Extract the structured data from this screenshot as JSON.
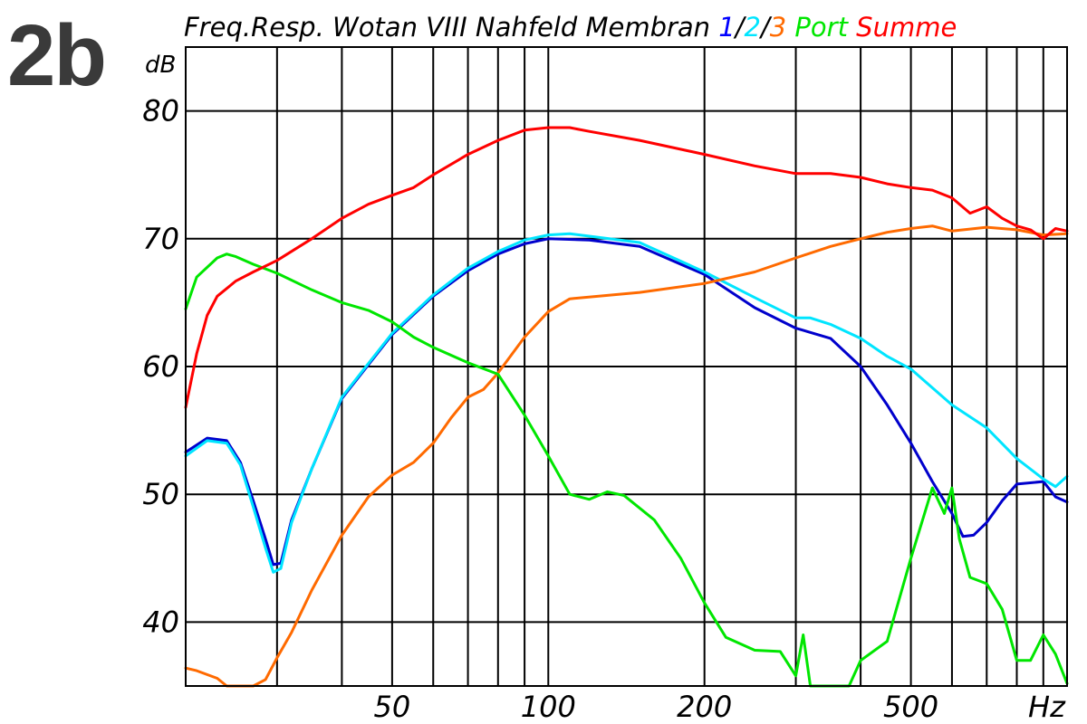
{
  "figure_label": "2b",
  "chart_data": {
    "type": "line",
    "title": "Freq.Resp. Wotan VIII Nahfeld Membran",
    "title_parts": [
      {
        "text": "Freq.Resp. Wotan VIII Nahfeld Membran ",
        "color": "#000000"
      },
      {
        "text": "1",
        "color": "#0000ff"
      },
      {
        "text": "/",
        "color": "#000000"
      },
      {
        "text": "2",
        "color": "#00e5ff"
      },
      {
        "text": "/",
        "color": "#000000"
      },
      {
        "text": "3",
        "color": "#ff6a00"
      },
      {
        "text": " Port",
        "color": "#00e600"
      },
      {
        "text": " Summe",
        "color": "#ff0000"
      }
    ],
    "xlabel": "Hz",
    "ylabel": "dB",
    "x_scale": "log",
    "xlim": [
      20,
      1000
    ],
    "ylim": [
      35,
      85
    ],
    "grid": true,
    "legend": "in title",
    "x_ticks": [
      {
        "value": 50,
        "label": "50"
      },
      {
        "value": 100,
        "label": "100"
      },
      {
        "value": 200,
        "label": "200"
      },
      {
        "value": 500,
        "label": "500"
      }
    ],
    "x_minor": [
      30,
      40,
      60,
      70,
      80,
      90,
      300,
      400,
      600,
      700,
      800,
      900
    ],
    "y_ticks": [
      {
        "value": 40,
        "label": "40"
      },
      {
        "value": 50,
        "label": "50"
      },
      {
        "value": 60,
        "label": "60"
      },
      {
        "value": 70,
        "label": "70"
      },
      {
        "value": 80,
        "label": "80"
      }
    ],
    "series": [
      {
        "name": "1",
        "color": "#0000cc",
        "x": [
          20,
          22,
          24,
          25.5,
          27,
          28.5,
          29.5,
          30.5,
          32,
          35,
          40,
          50,
          60,
          70,
          80,
          90,
          100,
          120,
          150,
          200,
          250,
          300,
          350,
          400,
          450,
          500,
          550,
          600,
          630,
          660,
          700,
          750,
          800,
          900,
          950,
          1000
        ],
        "y": [
          53.3,
          54.4,
          54.2,
          52.5,
          49.5,
          46.5,
          44.5,
          44.6,
          48.0,
          52.0,
          57.5,
          62.5,
          65.5,
          67.5,
          68.8,
          69.6,
          70.0,
          69.9,
          69.4,
          67.2,
          64.6,
          63.0,
          62.2,
          60.0,
          57.0,
          54.0,
          51.0,
          48.5,
          46.7,
          46.8,
          47.8,
          49.5,
          50.8,
          51.0,
          49.8,
          49.4
        ]
      },
      {
        "name": "2",
        "color": "#00e5ff",
        "x": [
          20,
          22,
          24,
          25.5,
          27,
          28.5,
          29.5,
          30.5,
          32,
          35,
          40,
          50,
          60,
          70,
          80,
          90,
          100,
          110,
          150,
          200,
          250,
          300,
          320,
          350,
          400,
          450,
          500,
          600,
          700,
          800,
          900,
          950,
          1000
        ],
        "y": [
          53.0,
          54.2,
          54.0,
          52.3,
          49.0,
          45.8,
          43.9,
          44.2,
          47.8,
          52.0,
          57.6,
          62.6,
          65.6,
          67.7,
          69.0,
          69.9,
          70.3,
          70.4,
          69.7,
          67.4,
          65.4,
          63.8,
          63.8,
          63.3,
          62.2,
          60.8,
          59.8,
          57.0,
          55.2,
          52.8,
          51.2,
          50.6,
          51.4
        ]
      },
      {
        "name": "3",
        "color": "#ff6a00",
        "x": [
          20,
          21,
          23,
          24,
          27,
          28.5,
          30,
          32,
          35,
          40,
          45,
          50,
          55,
          60,
          65,
          70,
          75,
          80,
          90,
          100,
          110,
          150,
          200,
          250,
          300,
          350,
          400,
          450,
          500,
          550,
          600,
          700,
          800,
          900,
          1000
        ],
        "y": [
          36.4,
          36.2,
          35.6,
          35.0,
          35.0,
          35.5,
          37.2,
          39.2,
          42.5,
          46.8,
          49.8,
          51.5,
          52.5,
          54.0,
          56.0,
          57.6,
          58.2,
          59.5,
          62.3,
          64.3,
          65.3,
          65.8,
          66.5,
          67.4,
          68.5,
          69.4,
          70.0,
          70.5,
          70.8,
          71.0,
          70.6,
          70.9,
          70.7,
          70.3,
          70.4
        ]
      },
      {
        "name": "Port",
        "color": "#00e600",
        "x": [
          20,
          21,
          23,
          24,
          25,
          27,
          30,
          35,
          40,
          45,
          50,
          55,
          60,
          70,
          80,
          90,
          100,
          110,
          120,
          130,
          140,
          160,
          180,
          200,
          220,
          250,
          280,
          300,
          310,
          320,
          330,
          350,
          380,
          400,
          450,
          500,
          550,
          580,
          600,
          620,
          650,
          700,
          750,
          800,
          850,
          900,
          950,
          1000
        ],
        "y": [
          64.5,
          67.0,
          68.5,
          68.8,
          68.6,
          68.0,
          67.3,
          66.0,
          65.0,
          64.4,
          63.5,
          62.3,
          61.5,
          60.3,
          59.4,
          56.2,
          53.0,
          50.0,
          49.6,
          50.2,
          49.9,
          48.0,
          45.0,
          41.5,
          38.8,
          37.8,
          37.7,
          35.8,
          39.0,
          35.0,
          35.0,
          35.0,
          35.0,
          37.0,
          38.5,
          45.0,
          50.5,
          48.5,
          50.5,
          46.5,
          43.5,
          43.0,
          41.0,
          37.0,
          37.0,
          39.0,
          37.5,
          35.2
        ]
      },
      {
        "name": "Summe",
        "color": "#ff0000",
        "x": [
          20,
          21,
          22,
          23,
          25,
          27,
          30,
          35,
          40,
          45,
          50,
          55,
          60,
          70,
          80,
          90,
          100,
          110,
          120,
          150,
          200,
          250,
          300,
          350,
          400,
          450,
          500,
          550,
          600,
          650,
          700,
          750,
          800,
          850,
          900,
          950,
          1000
        ],
        "y": [
          56.8,
          61.0,
          64.0,
          65.5,
          66.7,
          67.4,
          68.3,
          70.0,
          71.6,
          72.7,
          73.4,
          74.0,
          75.0,
          76.6,
          77.7,
          78.5,
          78.7,
          78.7,
          78.4,
          77.7,
          76.6,
          75.7,
          75.1,
          75.1,
          74.8,
          74.3,
          74.0,
          73.8,
          73.2,
          72.0,
          72.5,
          71.6,
          71.0,
          70.7,
          70.0,
          70.8,
          70.6
        ]
      }
    ]
  }
}
